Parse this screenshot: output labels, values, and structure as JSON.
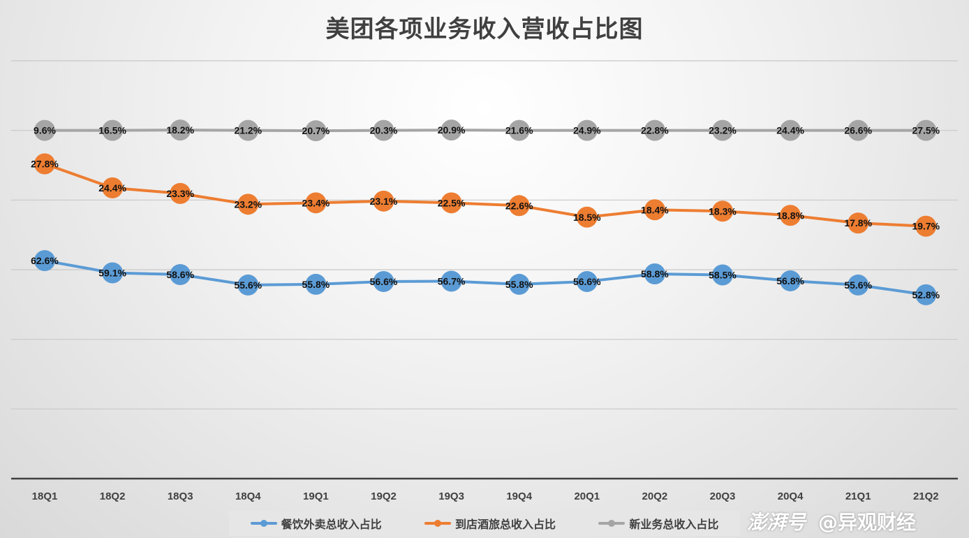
{
  "chart_data": {
    "type": "line",
    "title": "美团各项业务收入营收占比图",
    "categories": [
      "18Q1",
      "18Q2",
      "18Q3",
      "18Q4",
      "19Q1",
      "19Q2",
      "19Q3",
      "19Q4",
      "20Q1",
      "20Q2",
      "20Q3",
      "20Q4",
      "21Q1",
      "21Q2"
    ],
    "series": [
      {
        "name": "餐饮外卖总收入占比",
        "color": "#5b9bd5",
        "labels": [
          "62.6%",
          "59.1%",
          "58.6%",
          "55.6%",
          "55.8%",
          "56.6%",
          "56.7%",
          "55.8%",
          "56.6%",
          "58.8%",
          "58.5%",
          "56.8%",
          "55.6%",
          "52.8%"
        ],
        "values": [
          62.6,
          59.1,
          58.6,
          55.6,
          55.8,
          56.6,
          56.7,
          55.8,
          56.6,
          58.8,
          58.5,
          56.8,
          55.6,
          52.8
        ]
      },
      {
        "name": "到店酒旅总收入占比",
        "color": "#ed7d31",
        "labels": [
          "27.8%",
          "24.4%",
          "23.3%",
          "23.2%",
          "23.4%",
          "23.1%",
          "22.5%",
          "22.6%",
          "18.5%",
          "18.4%",
          "18.3%",
          "18.8%",
          "17.8%",
          "19.7%"
        ],
        "values": [
          27.8,
          24.4,
          23.3,
          23.2,
          23.4,
          23.1,
          22.5,
          22.6,
          18.5,
          18.4,
          18.3,
          18.8,
          17.8,
          19.7
        ]
      },
      {
        "name": "新业务总收入占比",
        "color": "#a5a5a5",
        "labels": [
          "9.6%",
          "16.5%",
          "18.2%",
          "21.2%",
          "20.7%",
          "20.3%",
          "20.9%",
          "21.6%",
          "24.9%",
          "22.8%",
          "23.2%",
          "24.4%",
          "26.6%",
          "27.5%"
        ],
        "values": [
          9.6,
          16.5,
          18.2,
          21.2,
          20.7,
          20.3,
          20.9,
          21.6,
          24.9,
          22.8,
          23.2,
          24.4,
          26.6,
          27.5
        ]
      }
    ],
    "stacked": true,
    "ylim": [
      0,
      120
    ],
    "grid": true,
    "legend_position": "bottom"
  },
  "watermark": {
    "logo": "澎湃号",
    "handle": "@异观财经"
  }
}
